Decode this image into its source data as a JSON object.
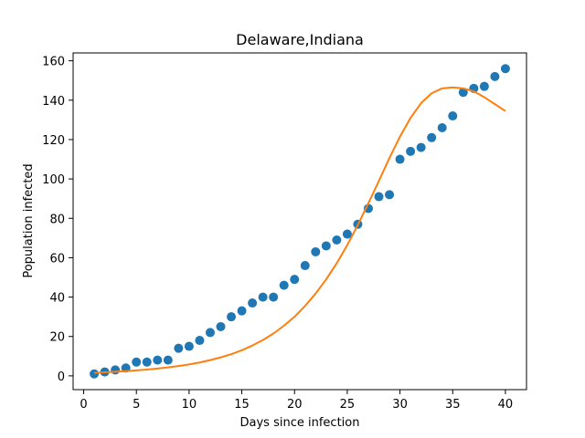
{
  "chart_data": {
    "type": "scatter",
    "title": "Delaware,Indiana",
    "xlabel": "Days since infection",
    "ylabel": "Population infected",
    "xlim": [
      -1,
      42
    ],
    "ylim": [
      -7,
      164
    ],
    "xticks": [
      0,
      5,
      10,
      15,
      20,
      25,
      30,
      35,
      40
    ],
    "yticks": [
      0,
      20,
      40,
      60,
      80,
      100,
      120,
      140,
      160
    ],
    "grid": false,
    "series": [
      {
        "type": "scatter",
        "color": "#1f77b4",
        "x": [
          1,
          2,
          3,
          4,
          5,
          6,
          7,
          8,
          9,
          10,
          11,
          12,
          13,
          14,
          15,
          16,
          17,
          18,
          19,
          20,
          21,
          22,
          23,
          24,
          25,
          26,
          27,
          28,
          29,
          30,
          31,
          32,
          33,
          34,
          35,
          36,
          37,
          38,
          39,
          40
        ],
        "y": [
          1,
          2,
          3,
          4,
          7,
          7,
          8,
          8,
          14,
          15,
          18,
          22,
          25,
          30,
          33,
          37,
          40,
          40,
          46,
          49,
          56,
          63,
          66,
          69,
          72,
          77,
          85,
          91,
          92,
          110,
          114,
          116,
          121,
          126,
          132,
          144,
          146,
          147,
          152,
          156
        ]
      },
      {
        "type": "line",
        "color": "#ff7f0e",
        "x": [
          1,
          2,
          3,
          4,
          5,
          6,
          7,
          8,
          9,
          10,
          11,
          12,
          13,
          14,
          15,
          16,
          17,
          18,
          19,
          20,
          21,
          22,
          23,
          24,
          25,
          26,
          27,
          28,
          29,
          30,
          31,
          32,
          33,
          34,
          35,
          36,
          37,
          38,
          39,
          40
        ],
        "y": [
          1.5,
          1.8,
          2.1,
          2.4,
          2.8,
          3.2,
          3.7,
          4.3,
          5.0,
          5.8,
          6.8,
          8.0,
          9.4,
          11.0,
          13.0,
          15.4,
          18.2,
          21.5,
          25.5,
          30.0,
          35.5,
          41.8,
          49.0,
          57.2,
          66.4,
          76.6,
          87.6,
          99.0,
          110.6,
          121.5,
          131.0,
          138.5,
          143.5,
          146.0,
          146.5,
          146.0,
          144.5,
          141.5,
          138.0,
          134.5
        ]
      }
    ]
  }
}
